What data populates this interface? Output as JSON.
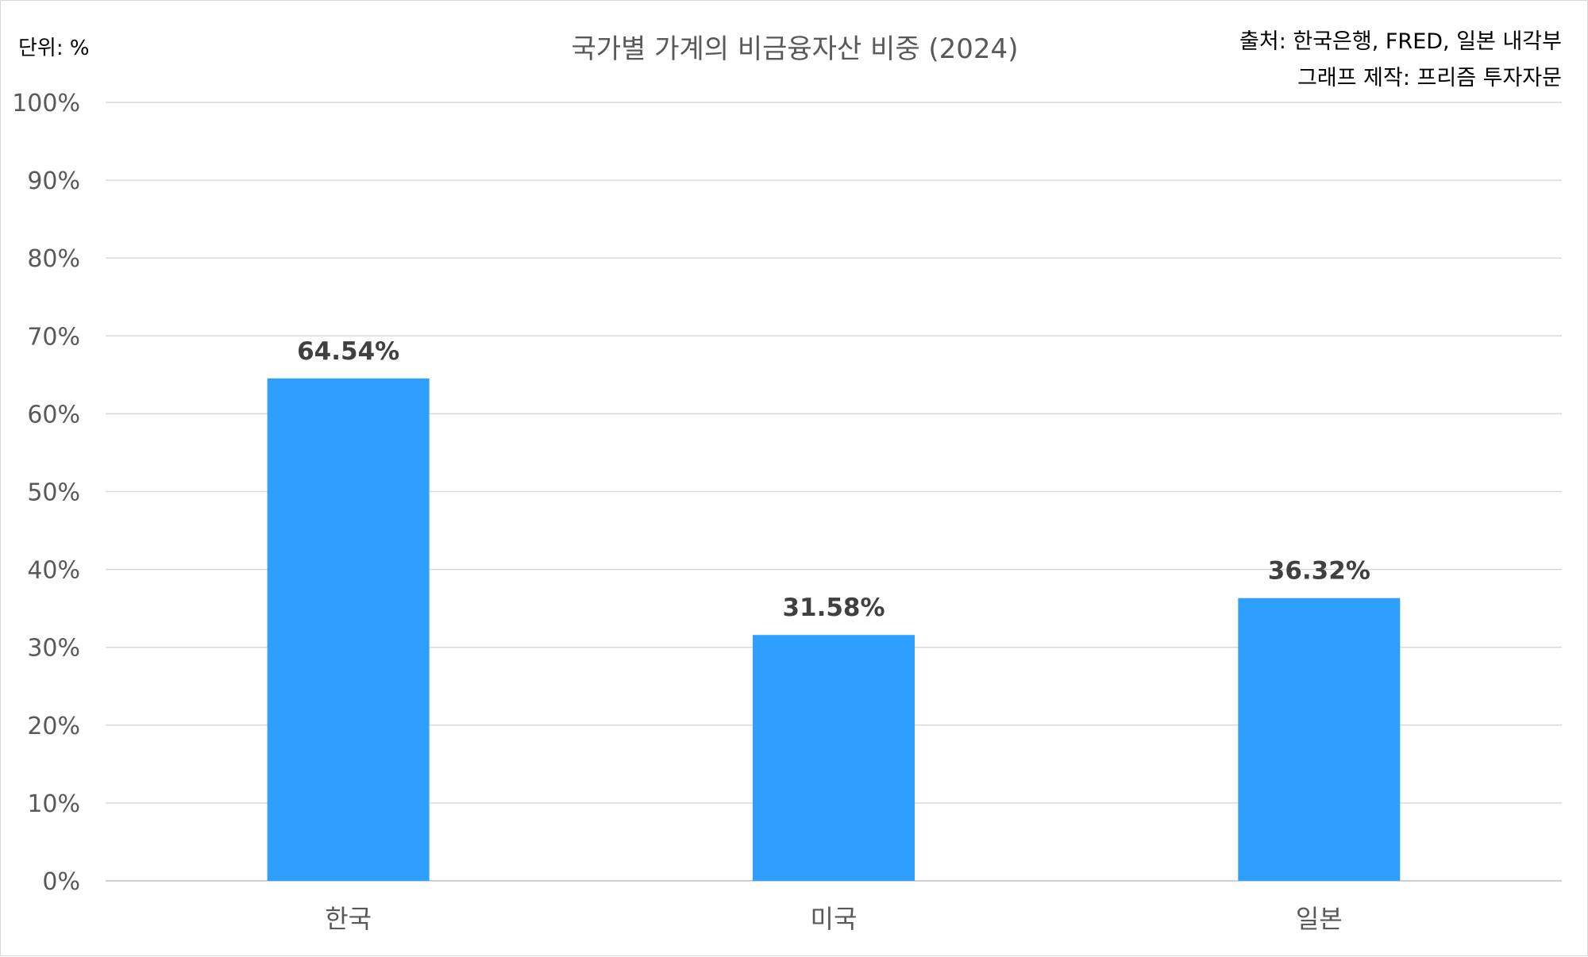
{
  "chart_data": {
    "type": "bar",
    "title": "국가별 가계의 비금융자산 비중 (2024)",
    "unit_label": "단위: %",
    "source_lines": [
      "출처: 한국은행, FRED, 일본 내각부",
      "그래프 제작: 프리즘 투자자문"
    ],
    "categories": [
      "한국",
      "미국",
      "일본"
    ],
    "values": [
      64.54,
      31.58,
      36.32
    ],
    "value_labels": [
      "64.54%",
      "31.58%",
      "36.32%"
    ],
    "ylim": [
      0,
      100
    ],
    "yticks": [
      0,
      10,
      20,
      30,
      40,
      50,
      60,
      70,
      80,
      90,
      100
    ],
    "ytick_labels": [
      "0%",
      "10%",
      "20%",
      "30%",
      "40%",
      "50%",
      "60%",
      "70%",
      "80%",
      "90%",
      "100%"
    ],
    "bar_color": "#2e9ffc",
    "grid": true,
    "legend": "none"
  }
}
